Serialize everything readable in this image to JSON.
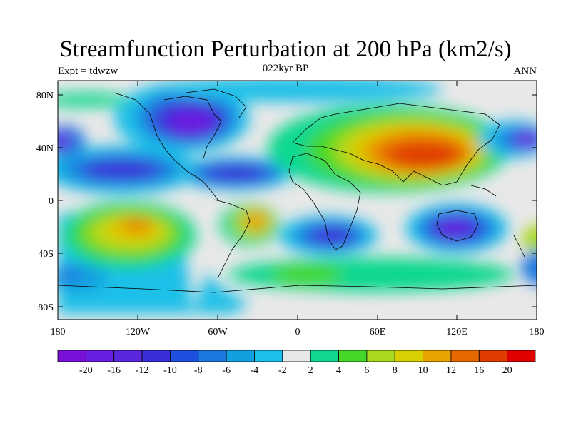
{
  "title": "Streamfunction Perturbation at 200 hPa (km2/s)",
  "subtitle_left": "Expt = tdwzw",
  "subtitle_center": "022kyr BP",
  "subtitle_right": "ANN",
  "lat_ticks": [
    "80N",
    "40N",
    "0",
    "40S",
    "80S"
  ],
  "lon_ticks": [
    "180",
    "120W",
    "60W",
    "0",
    "60E",
    "120E",
    "180"
  ],
  "colorbar": {
    "labels": [
      "-20",
      "-16",
      "-12",
      "-10",
      "-8",
      "-6",
      "-4",
      "-2",
      "2",
      "4",
      "6",
      "8",
      "10",
      "12",
      "16",
      "20"
    ],
    "colors": [
      "#7a10d8",
      "#6a1ee0",
      "#5a28dc",
      "#3a2ed8",
      "#1e50e0",
      "#1a78e0",
      "#12a0e0",
      "#1cc0e8",
      "#e8e8e8",
      "#10d890",
      "#44d828",
      "#a8d820",
      "#d8d000",
      "#e8a400",
      "#e86800",
      "#e03c00",
      "#e00000"
    ]
  }
}
